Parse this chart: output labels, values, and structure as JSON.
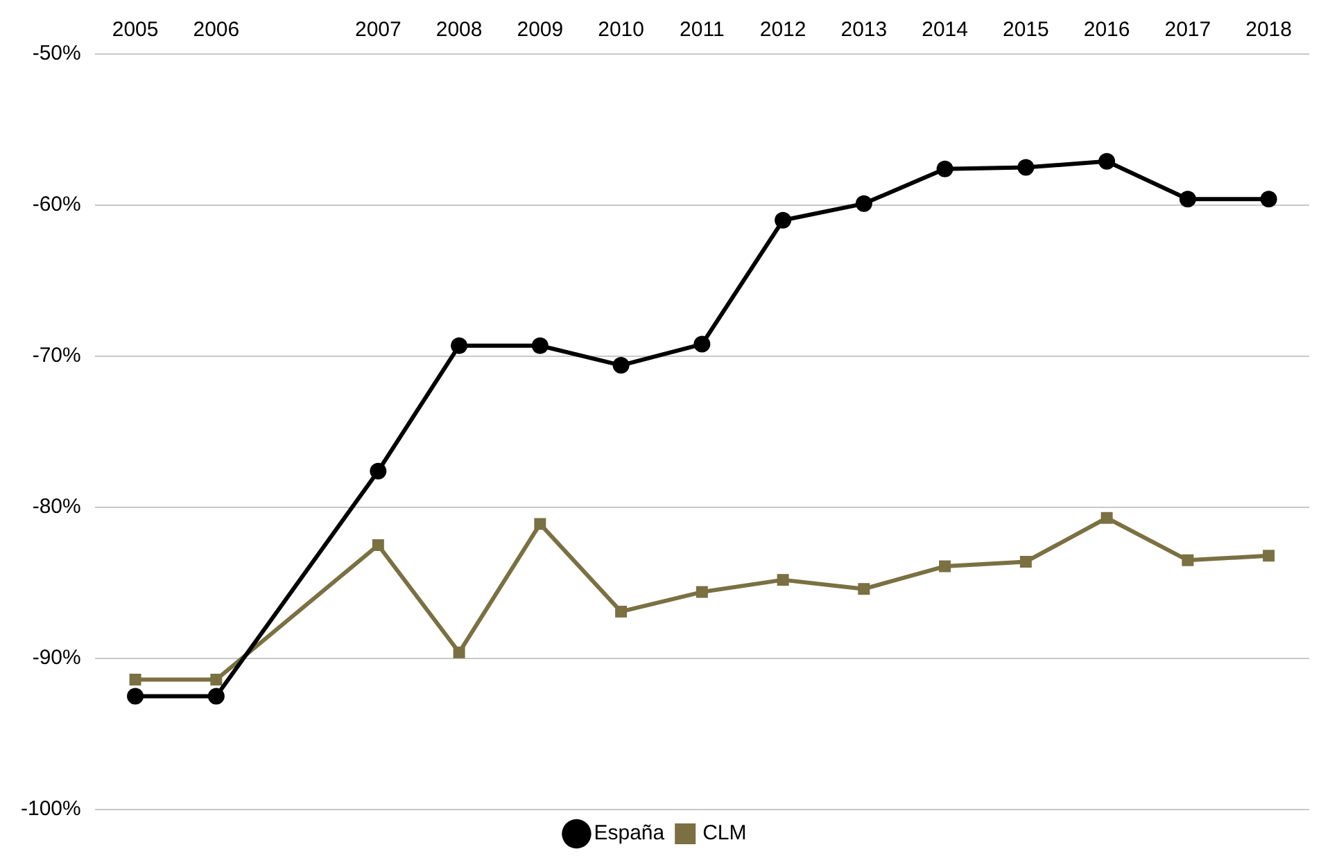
{
  "chart_data": {
    "type": "line",
    "categories": [
      "2005",
      "2006",
      null,
      "2007",
      "2008",
      "2009",
      "2010",
      "2011",
      "2012",
      "2013",
      "2014",
      "2015",
      "2016",
      "2017",
      "2018"
    ],
    "series": [
      {
        "name": "España",
        "color": "#000000",
        "marker": "circle",
        "values": [
          -92.5,
          -92.5,
          null,
          -77.6,
          -69.3,
          -69.3,
          -70.6,
          -69.2,
          -61.0,
          -59.9,
          -57.6,
          -57.5,
          -57.1,
          -59.6,
          -59.6
        ]
      },
      {
        "name": "CLM",
        "color": "#7a7042",
        "marker": "square",
        "values": [
          -91.4,
          -91.4,
          null,
          -82.5,
          -89.6,
          -81.1,
          -86.9,
          -85.6,
          -84.8,
          -85.4,
          -83.9,
          -83.6,
          -80.7,
          -83.5,
          -83.2
        ]
      }
    ],
    "ylim": [
      -100,
      -50
    ],
    "yticks": [
      {
        "value": -100,
        "label": "-100%"
      },
      {
        "value": -90,
        "label": "-90%"
      },
      {
        "value": -80,
        "label": "-80%"
      },
      {
        "value": -70,
        "label": "-70%"
      },
      {
        "value": -60,
        "label": "-60%"
      },
      {
        "value": -50,
        "label": "-50%"
      }
    ],
    "grid": "y",
    "legend": "bottom",
    "line_style": "solid"
  }
}
